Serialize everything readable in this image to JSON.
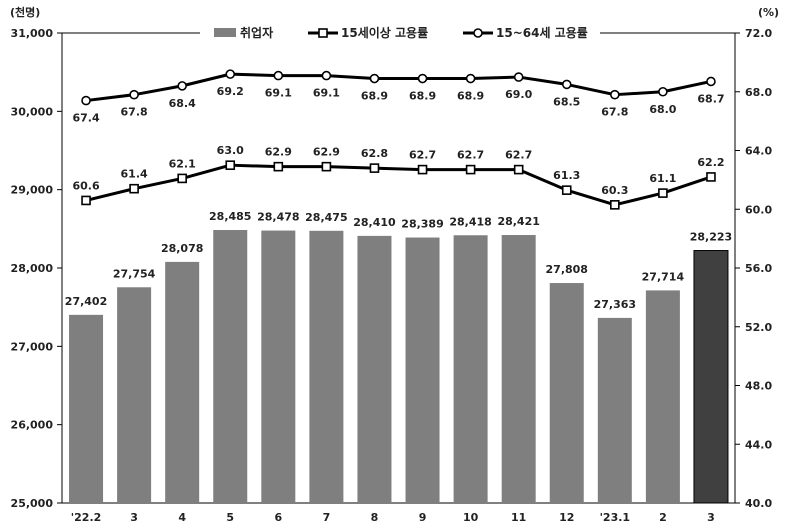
{
  "chart_data": {
    "type": "bar",
    "left_unit": "(천명)",
    "right_unit": "(%)",
    "categories": [
      "'22.2",
      "3",
      "4",
      "5",
      "6",
      "7",
      "8",
      "9",
      "10",
      "11",
      "12",
      "'23.1",
      "2",
      "3"
    ],
    "y_left": {
      "min": 25000,
      "max": 31000,
      "ticks": [
        25000,
        26000,
        27000,
        28000,
        29000,
        30000,
        31000
      ],
      "tick_labels": [
        "25,000",
        "26,000",
        "27,000",
        "28,000",
        "29,000",
        "30,000",
        "31,000"
      ]
    },
    "y_right": {
      "min": 40.0,
      "max": 72.0,
      "ticks": [
        40.0,
        44.0,
        48.0,
        52.0,
        56.0,
        60.0,
        64.0,
        68.0,
        72.0
      ],
      "tick_labels": [
        "40.0",
        "44.0",
        "48.0",
        "52.0",
        "56.0",
        "60.0",
        "64.0",
        "68.0",
        "72.0"
      ]
    },
    "series": [
      {
        "name": "취업자",
        "type": "bar",
        "axis": "left",
        "values": [
          27402,
          27754,
          28078,
          28485,
          28478,
          28475,
          28410,
          28389,
          28418,
          28421,
          27808,
          27363,
          27714,
          28223
        ],
        "labels": [
          "27,402",
          "27,754",
          "28,078",
          "28,485",
          "28,478",
          "28,475",
          "28,410",
          "28,389",
          "28,418",
          "28,421",
          "27,808",
          "27,363",
          "27,714",
          "28,223"
        ],
        "color": "#7f7f7f",
        "highlight_color": "#404040"
      },
      {
        "name": "15세이상 고용률",
        "type": "line",
        "axis": "right",
        "marker": "square",
        "values": [
          60.6,
          61.4,
          62.1,
          63.0,
          62.9,
          62.9,
          62.8,
          62.7,
          62.7,
          62.7,
          61.3,
          60.3,
          61.1,
          62.2
        ],
        "labels": [
          "60.6",
          "61.4",
          "62.1",
          "63.0",
          "62.9",
          "62.9",
          "62.8",
          "62.7",
          "62.7",
          "62.7",
          "61.3",
          "60.3",
          "61.1",
          "62.2"
        ],
        "color": "#000000"
      },
      {
        "name": "15~64세 고용률",
        "type": "line",
        "axis": "right",
        "marker": "circle",
        "values": [
          67.4,
          67.8,
          68.4,
          69.2,
          69.1,
          69.1,
          68.9,
          68.9,
          68.9,
          69.0,
          68.5,
          67.8,
          68.0,
          68.7
        ],
        "labels": [
          "67.4",
          "67.8",
          "68.4",
          "69.2",
          "69.1",
          "69.1",
          "68.9",
          "68.9",
          "68.9",
          "69.0",
          "68.5",
          "67.8",
          "68.0",
          "68.7"
        ],
        "color": "#000000"
      }
    ],
    "legend_position": "top-center",
    "grid": false
  }
}
